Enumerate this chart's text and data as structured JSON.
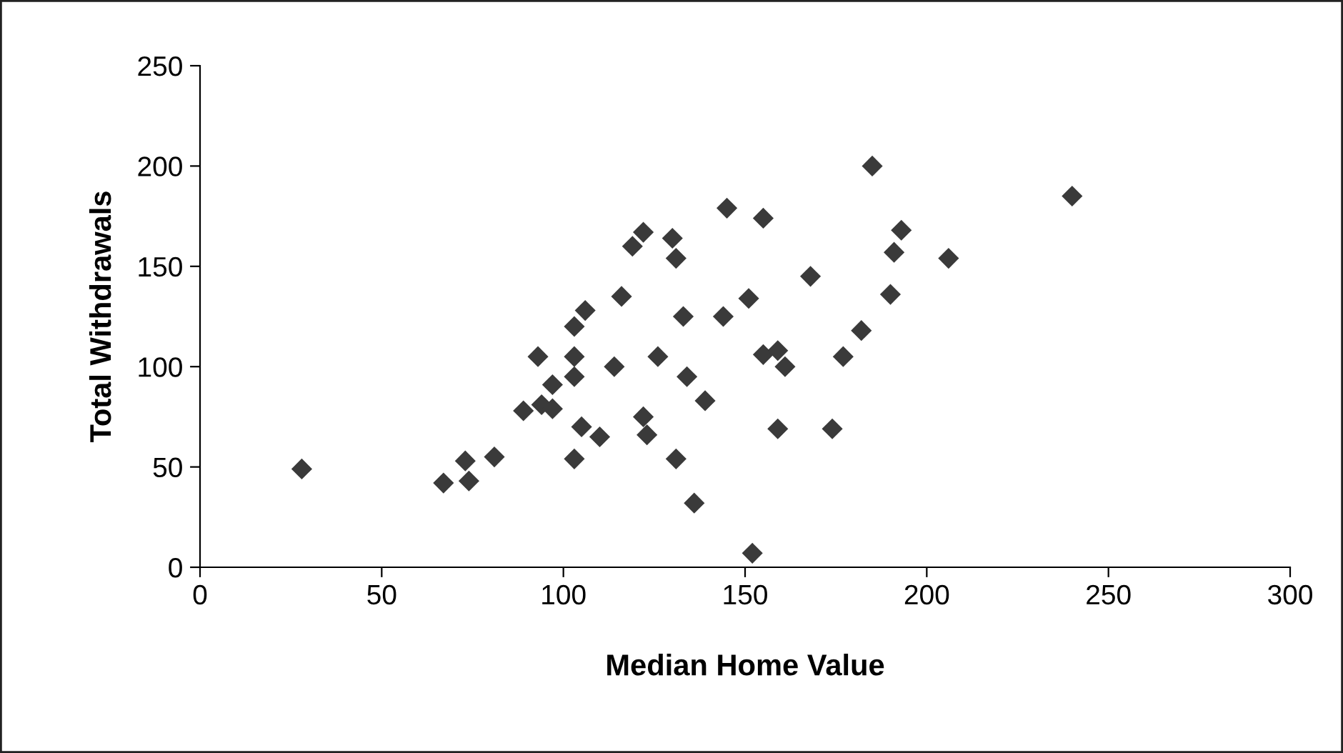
{
  "chart_data": {
    "type": "scatter",
    "xlabel": "Median Home Value",
    "ylabel": "Total Withdrawals",
    "xlim": [
      0,
      300
    ],
    "xticks": [
      0,
      50,
      100,
      150,
      200,
      250,
      300
    ],
    "ylim": [
      0,
      250
    ],
    "yticks": [
      0,
      50,
      100,
      150,
      200,
      250
    ],
    "grid": false,
    "legend": false,
    "marker": "diamond",
    "series": [
      {
        "color": "#3a3a3a",
        "x": [
          28,
          67,
          73,
          74,
          81,
          89,
          94,
          97,
          93,
          97,
          103,
          103,
          103,
          106,
          105,
          110,
          103,
          119,
          122,
          130,
          131,
          116,
          133,
          126,
          114,
          134,
          139,
          122,
          123,
          131,
          136,
          145,
          155,
          144,
          151,
          168,
          155,
          159,
          161,
          159,
          174,
          152,
          177,
          182,
          185,
          193,
          191,
          190,
          206,
          240
        ],
        "values": [
          49,
          42,
          53,
          43,
          55,
          78,
          81,
          79,
          105,
          91,
          120,
          105,
          95,
          128,
          70,
          65,
          54,
          160,
          167,
          164,
          154,
          135,
          125,
          105,
          100,
          95,
          83,
          75,
          66,
          54,
          32,
          179,
          174,
          125,
          134,
          145,
          106,
          108,
          100,
          69,
          69,
          7,
          105,
          118,
          200,
          168,
          157,
          136,
          154,
          185
        ]
      }
    ]
  }
}
